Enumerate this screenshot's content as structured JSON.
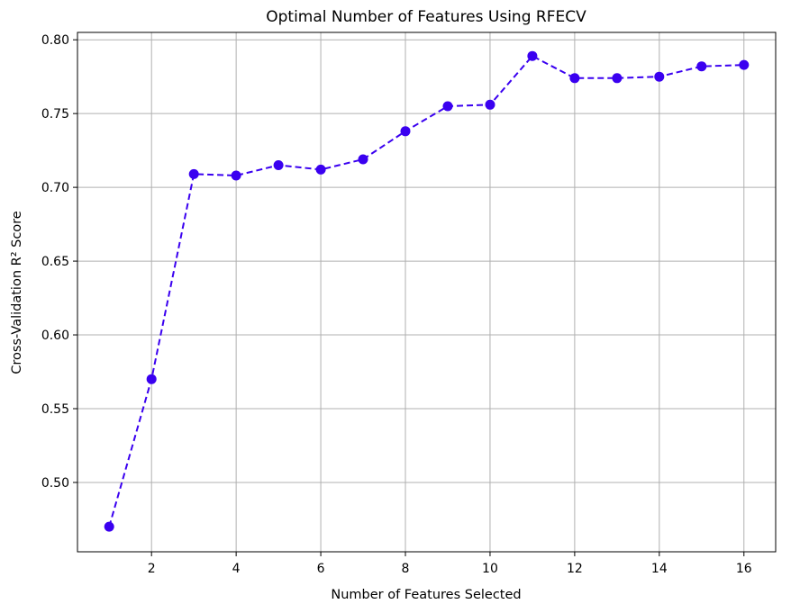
{
  "chart_data": {
    "type": "line",
    "title": "Optimal Number of Features Using RFECV",
    "xlabel": "Number of Features Selected",
    "ylabel": "Cross-Validation R² Score",
    "xlim": [
      0.25,
      16.75
    ],
    "ylim": [
      0.453,
      0.805
    ],
    "xticks": [
      2,
      4,
      6,
      8,
      10,
      12,
      14,
      16
    ],
    "yticks": [
      0.5,
      0.55,
      0.6,
      0.65,
      0.7,
      0.75,
      0.8
    ],
    "grid": true,
    "series": [
      {
        "line_style": "dashed",
        "marker": "circle",
        "color": "#3a00f0",
        "x": [
          1,
          2,
          3,
          4,
          5,
          6,
          7,
          8,
          9,
          10,
          11,
          12,
          13,
          14,
          15,
          16
        ],
        "y": [
          0.47,
          0.57,
          0.709,
          0.708,
          0.715,
          0.712,
          0.719,
          0.738,
          0.755,
          0.756,
          0.789,
          0.774,
          0.774,
          0.775,
          0.782,
          0.783
        ]
      }
    ]
  }
}
